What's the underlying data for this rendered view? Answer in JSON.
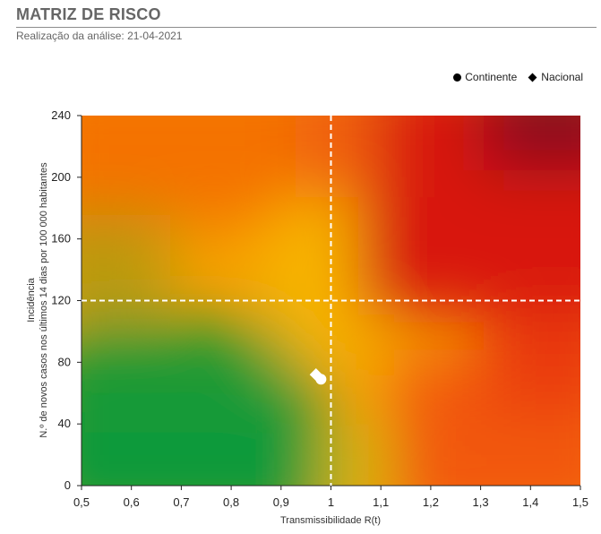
{
  "header": {
    "title": "MATRIZ DE RISCO",
    "subtitle": "Realização da análise: 21-04-2021"
  },
  "legend": {
    "continente": "Continente",
    "nacional": "Nacional"
  },
  "chart_data": {
    "type": "scatter",
    "title": "MATRIZ DE RISCO",
    "xlabel": "Transmissibilidade  R(t)",
    "ylabel_line1": "Incidência",
    "ylabel_line2": "N.º de novos  casos nos últimos 14 dias por 100 000 habitantes",
    "xlim": [
      0.5,
      1.5
    ],
    "ylim": [
      0,
      240
    ],
    "x_ticks": [
      "0,5",
      "0,6",
      "0,7",
      "0,8",
      "0,9",
      "1",
      "1,1",
      "1,2",
      "1,3",
      "1,4",
      "1,5"
    ],
    "x_tick_values": [
      0.5,
      0.6,
      0.7,
      0.8,
      0.9,
      1.0,
      1.1,
      1.2,
      1.3,
      1.4,
      1.5
    ],
    "y_ticks": [
      "0",
      "40",
      "80",
      "120",
      "160",
      "200",
      "240"
    ],
    "y_tick_values": [
      0,
      40,
      80,
      120,
      160,
      200,
      240
    ],
    "thresholds": {
      "x": 1.0,
      "y": 120
    },
    "legend_position": "top-right",
    "background": "risk gradient: green low-left, orange/yellow center, red/dark red top-right",
    "series": [
      {
        "name": "Continente",
        "marker": "circle",
        "color": "#ffffff",
        "points": [
          {
            "x": 0.98,
            "y": 69
          }
        ]
      },
      {
        "name": "Nacional",
        "marker": "diamond",
        "color": "#ffffff",
        "points": [
          {
            "x": 0.97,
            "y": 72
          }
        ]
      }
    ],
    "colors": {
      "green": "#0f9a3c",
      "yellow": "#f5b000",
      "orange": "#f47a00",
      "red": "#e01c0c",
      "darkred": "#8e0e1e"
    }
  }
}
